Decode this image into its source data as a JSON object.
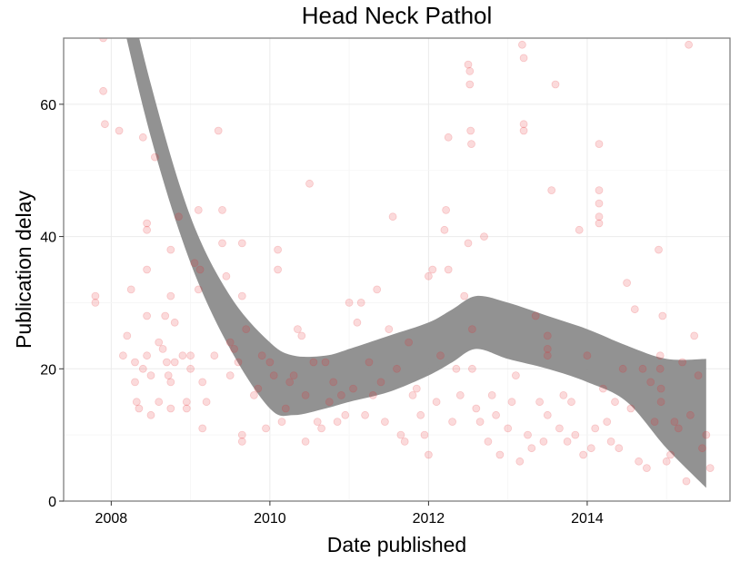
{
  "chart_data": {
    "type": "scatter",
    "title": "Head Neck Pathol",
    "xlabel": "Date published",
    "ylabel": "Publication delay",
    "x_unit": "year",
    "xlim": [
      2007.4,
      2015.8
    ],
    "ylim": [
      0,
      70
    ],
    "x_ticks": [
      2008,
      2010,
      2012,
      2014
    ],
    "x_tick_labels": [
      "2008",
      "2010",
      "2012",
      "2014"
    ],
    "y_ticks": [
      0,
      20,
      40,
      60
    ],
    "y_tick_labels": [
      "0",
      "20",
      "40",
      "60"
    ],
    "grid": true,
    "legend": "none",
    "colors": {
      "points": "#e8262b",
      "band": "#8c8c8c"
    },
    "smooth_band": {
      "x": [
        2008.0,
        2008.5,
        2009.0,
        2009.5,
        2010.0,
        2010.3,
        2010.7,
        2011.0,
        2011.5,
        2012.0,
        2012.3,
        2012.6,
        2013.0,
        2013.5,
        2014.0,
        2014.5,
        2015.0,
        2015.5
      ],
      "lower": [
        80.0,
        55.0,
        36.0,
        23.0,
        14.0,
        13.0,
        14.0,
        15.0,
        16.5,
        19.0,
        21.0,
        23.0,
        21.5,
        20.0,
        18.0,
        15.0,
        8.0,
        2.0
      ],
      "upper": [
        88.0,
        63.0,
        43.0,
        31.0,
        24.0,
        22.0,
        22.0,
        23.0,
        25.0,
        27.0,
        29.0,
        31.0,
        30.0,
        28.0,
        26.0,
        23.5,
        21.5,
        21.5
      ]
    },
    "points": [
      [
        2007.8,
        30
      ],
      [
        2007.8,
        31
      ],
      [
        2007.9,
        70
      ],
      [
        2007.9,
        62
      ],
      [
        2007.92,
        57
      ],
      [
        2008.1,
        56
      ],
      [
        2008.15,
        22
      ],
      [
        2008.2,
        25
      ],
      [
        2008.25,
        32
      ],
      [
        2008.3,
        21
      ],
      [
        2008.3,
        18
      ],
      [
        2008.32,
        15
      ],
      [
        2008.35,
        14
      ],
      [
        2008.4,
        20
      ],
      [
        2008.4,
        55
      ],
      [
        2008.45,
        42
      ],
      [
        2008.45,
        41
      ],
      [
        2008.45,
        35
      ],
      [
        2008.45,
        28
      ],
      [
        2008.45,
        22
      ],
      [
        2008.5,
        19
      ],
      [
        2008.5,
        13
      ],
      [
        2008.55,
        52
      ],
      [
        2008.6,
        24
      ],
      [
        2008.6,
        15
      ],
      [
        2008.65,
        23
      ],
      [
        2008.68,
        28
      ],
      [
        2008.7,
        21
      ],
      [
        2008.72,
        19
      ],
      [
        2008.75,
        31
      ],
      [
        2008.75,
        18
      ],
      [
        2008.75,
        14
      ],
      [
        2008.75,
        38
      ],
      [
        2008.8,
        21
      ],
      [
        2008.8,
        27
      ],
      [
        2008.85,
        43
      ],
      [
        2008.9,
        22
      ],
      [
        2008.95,
        15
      ],
      [
        2008.95,
        14
      ],
      [
        2009.0,
        20
      ],
      [
        2009.0,
        22
      ],
      [
        2009.05,
        36
      ],
      [
        2009.1,
        44
      ],
      [
        2009.1,
        32
      ],
      [
        2009.12,
        35
      ],
      [
        2009.15,
        11
      ],
      [
        2009.15,
        18
      ],
      [
        2009.2,
        15
      ],
      [
        2009.3,
        22
      ],
      [
        2009.35,
        56
      ],
      [
        2009.4,
        39
      ],
      [
        2009.4,
        44
      ],
      [
        2009.45,
        34
      ],
      [
        2009.5,
        24
      ],
      [
        2009.5,
        19
      ],
      [
        2009.55,
        23
      ],
      [
        2009.6,
        21
      ],
      [
        2009.65,
        39
      ],
      [
        2009.65,
        31
      ],
      [
        2009.65,
        10
      ],
      [
        2009.65,
        9
      ],
      [
        2009.7,
        26
      ],
      [
        2009.8,
        16
      ],
      [
        2009.85,
        17
      ],
      [
        2009.9,
        22
      ],
      [
        2009.95,
        11
      ],
      [
        2010.0,
        21
      ],
      [
        2010.05,
        19
      ],
      [
        2010.1,
        38
      ],
      [
        2010.1,
        35
      ],
      [
        2010.15,
        12
      ],
      [
        2010.2,
        14
      ],
      [
        2010.25,
        18
      ],
      [
        2010.3,
        19
      ],
      [
        2010.35,
        26
      ],
      [
        2010.4,
        25
      ],
      [
        2010.45,
        16
      ],
      [
        2010.45,
        9
      ],
      [
        2010.5,
        48
      ],
      [
        2010.55,
        21
      ],
      [
        2010.6,
        12
      ],
      [
        2010.65,
        11
      ],
      [
        2010.7,
        21
      ],
      [
        2010.75,
        15
      ],
      [
        2010.8,
        18
      ],
      [
        2010.85,
        12
      ],
      [
        2010.9,
        16
      ],
      [
        2010.95,
        13
      ],
      [
        2011.0,
        30
      ],
      [
        2011.05,
        17
      ],
      [
        2011.1,
        27
      ],
      [
        2011.15,
        30
      ],
      [
        2011.2,
        13
      ],
      [
        2011.25,
        21
      ],
      [
        2011.3,
        16
      ],
      [
        2011.35,
        32
      ],
      [
        2011.4,
        18
      ],
      [
        2011.45,
        12
      ],
      [
        2011.5,
        26
      ],
      [
        2011.55,
        43
      ],
      [
        2011.6,
        20
      ],
      [
        2011.65,
        10
      ],
      [
        2011.7,
        9
      ],
      [
        2011.75,
        24
      ],
      [
        2011.8,
        16
      ],
      [
        2011.85,
        17
      ],
      [
        2011.9,
        13
      ],
      [
        2011.95,
        10
      ],
      [
        2012.0,
        7
      ],
      [
        2012.0,
        34
      ],
      [
        2012.05,
        35
      ],
      [
        2012.1,
        15
      ],
      [
        2012.15,
        22
      ],
      [
        2012.2,
        41
      ],
      [
        2012.22,
        44
      ],
      [
        2012.25,
        55
      ],
      [
        2012.25,
        35
      ],
      [
        2012.3,
        12
      ],
      [
        2012.35,
        20
      ],
      [
        2012.4,
        16
      ],
      [
        2012.45,
        31
      ],
      [
        2012.5,
        39
      ],
      [
        2012.5,
        66
      ],
      [
        2012.52,
        65
      ],
      [
        2012.52,
        63
      ],
      [
        2012.53,
        56
      ],
      [
        2012.54,
        54
      ],
      [
        2012.55,
        26
      ],
      [
        2012.55,
        20
      ],
      [
        2012.6,
        14
      ],
      [
        2012.65,
        12
      ],
      [
        2012.7,
        40
      ],
      [
        2012.75,
        9
      ],
      [
        2012.8,
        16
      ],
      [
        2012.85,
        13
      ],
      [
        2012.9,
        7
      ],
      [
        2013.0,
        11
      ],
      [
        2013.05,
        15
      ],
      [
        2013.1,
        19
      ],
      [
        2013.15,
        6
      ],
      [
        2013.18,
        69
      ],
      [
        2013.2,
        67
      ],
      [
        2013.2,
        57
      ],
      [
        2013.2,
        56
      ],
      [
        2013.25,
        10
      ],
      [
        2013.3,
        8
      ],
      [
        2013.35,
        28
      ],
      [
        2013.4,
        15
      ],
      [
        2013.45,
        9
      ],
      [
        2013.5,
        25
      ],
      [
        2013.5,
        23
      ],
      [
        2013.5,
        22
      ],
      [
        2013.5,
        13
      ],
      [
        2013.55,
        47
      ],
      [
        2013.6,
        63
      ],
      [
        2013.65,
        11
      ],
      [
        2013.7,
        16
      ],
      [
        2013.75,
        9
      ],
      [
        2013.8,
        15
      ],
      [
        2013.85,
        10
      ],
      [
        2013.9,
        41
      ],
      [
        2013.95,
        7
      ],
      [
        2014.0,
        22
      ],
      [
        2014.05,
        8
      ],
      [
        2014.1,
        11
      ],
      [
        2014.15,
        54
      ],
      [
        2014.15,
        47
      ],
      [
        2014.15,
        45
      ],
      [
        2014.15,
        43
      ],
      [
        2014.15,
        42
      ],
      [
        2014.2,
        17
      ],
      [
        2014.25,
        12
      ],
      [
        2014.3,
        9
      ],
      [
        2014.35,
        15
      ],
      [
        2014.4,
        8
      ],
      [
        2014.45,
        20
      ],
      [
        2014.5,
        33
      ],
      [
        2014.55,
        14
      ],
      [
        2014.6,
        29
      ],
      [
        2014.65,
        6
      ],
      [
        2014.7,
        20
      ],
      [
        2014.75,
        5
      ],
      [
        2014.8,
        18
      ],
      [
        2014.85,
        12
      ],
      [
        2014.9,
        38
      ],
      [
        2014.92,
        22
      ],
      [
        2014.92,
        20
      ],
      [
        2014.93,
        17
      ],
      [
        2014.93,
        15
      ],
      [
        2014.95,
        28
      ],
      [
        2015.0,
        6
      ],
      [
        2015.05,
        7
      ],
      [
        2015.1,
        12
      ],
      [
        2015.15,
        11
      ],
      [
        2015.2,
        21
      ],
      [
        2015.25,
        3
      ],
      [
        2015.28,
        69
      ],
      [
        2015.3,
        13
      ],
      [
        2015.35,
        25
      ],
      [
        2015.4,
        19
      ],
      [
        2015.45,
        8
      ],
      [
        2015.5,
        10
      ],
      [
        2015.55,
        5
      ]
    ]
  }
}
